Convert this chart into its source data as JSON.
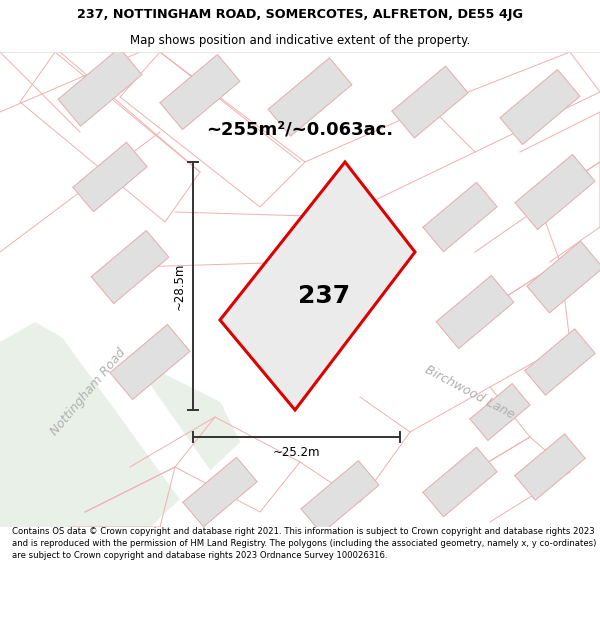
{
  "title_line1": "237, NOTTINGHAM ROAD, SOMERCOTES, ALFRETON, DE55 4JG",
  "title_line2": "Map shows position and indicative extent of the property.",
  "footer_text": "Contains OS data © Crown copyright and database right 2021. This information is subject to Crown copyright and database rights 2023 and is reproduced with the permission of HM Land Registry. The polygons (including the associated geometry, namely x, y co-ordinates) are subject to Crown copyright and database rights 2023 Ordnance Survey 100026316.",
  "area_label": "~255m²/~0.063ac.",
  "number_label": "237",
  "dim_width": "~25.2m",
  "dim_height": "~28.5m",
  "road_label_1": "Nottingham Road",
  "road_label_2": "Birchwood Lane",
  "bg_color": "#f5f3f3",
  "road_white": "#ffffff",
  "building_fill": "#e0e0e0",
  "building_edge": "#c0c0c0",
  "plot_fill": "#ebebeb",
  "plot_edge": "#dd0000",
  "boundary_color": "#f0b0b0",
  "green_fill": "#e8f0e8",
  "dim_line_color": "#333333",
  "road_label_color": "#b0b0b0",
  "text_color": "#000000"
}
